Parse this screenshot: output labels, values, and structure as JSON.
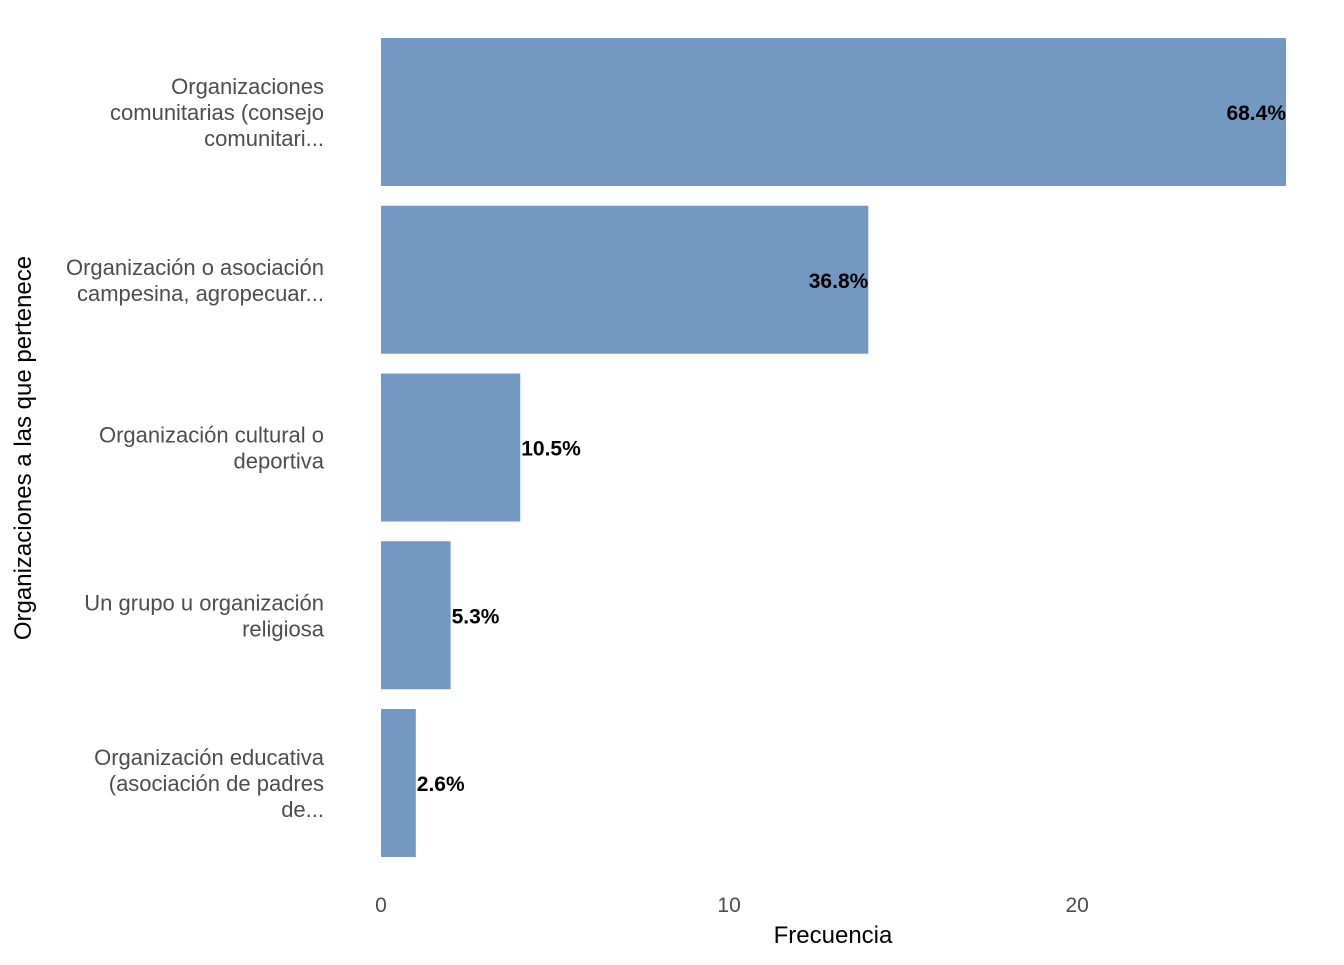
{
  "chart_data": {
    "type": "bar",
    "orientation": "horizontal",
    "title": "",
    "xlabel": "Frecuencia",
    "ylabel": "Organizaciones a las que pertenece",
    "xlim": [
      0,
      26
    ],
    "xticks": [
      0,
      10,
      20
    ],
    "grid": false,
    "bar_color": "#7399c2",
    "categories": [
      [
        "Organizaciones",
        "comunitarias (consejo",
        "comunitari..."
      ],
      [
        "Organización o asociación",
        "campesina, agropecuar..."
      ],
      [
        "Organización cultural o",
        "deportiva"
      ],
      [
        "Un grupo u organización",
        "religiosa"
      ],
      [
        "Organización educativa",
        "(asociación de padres",
        "de..."
      ]
    ],
    "values": [
      26,
      14,
      4,
      2,
      1
    ],
    "data_labels": [
      "68.4%",
      "36.8%",
      "10.5%",
      "5.3%",
      "2.6%"
    ]
  }
}
